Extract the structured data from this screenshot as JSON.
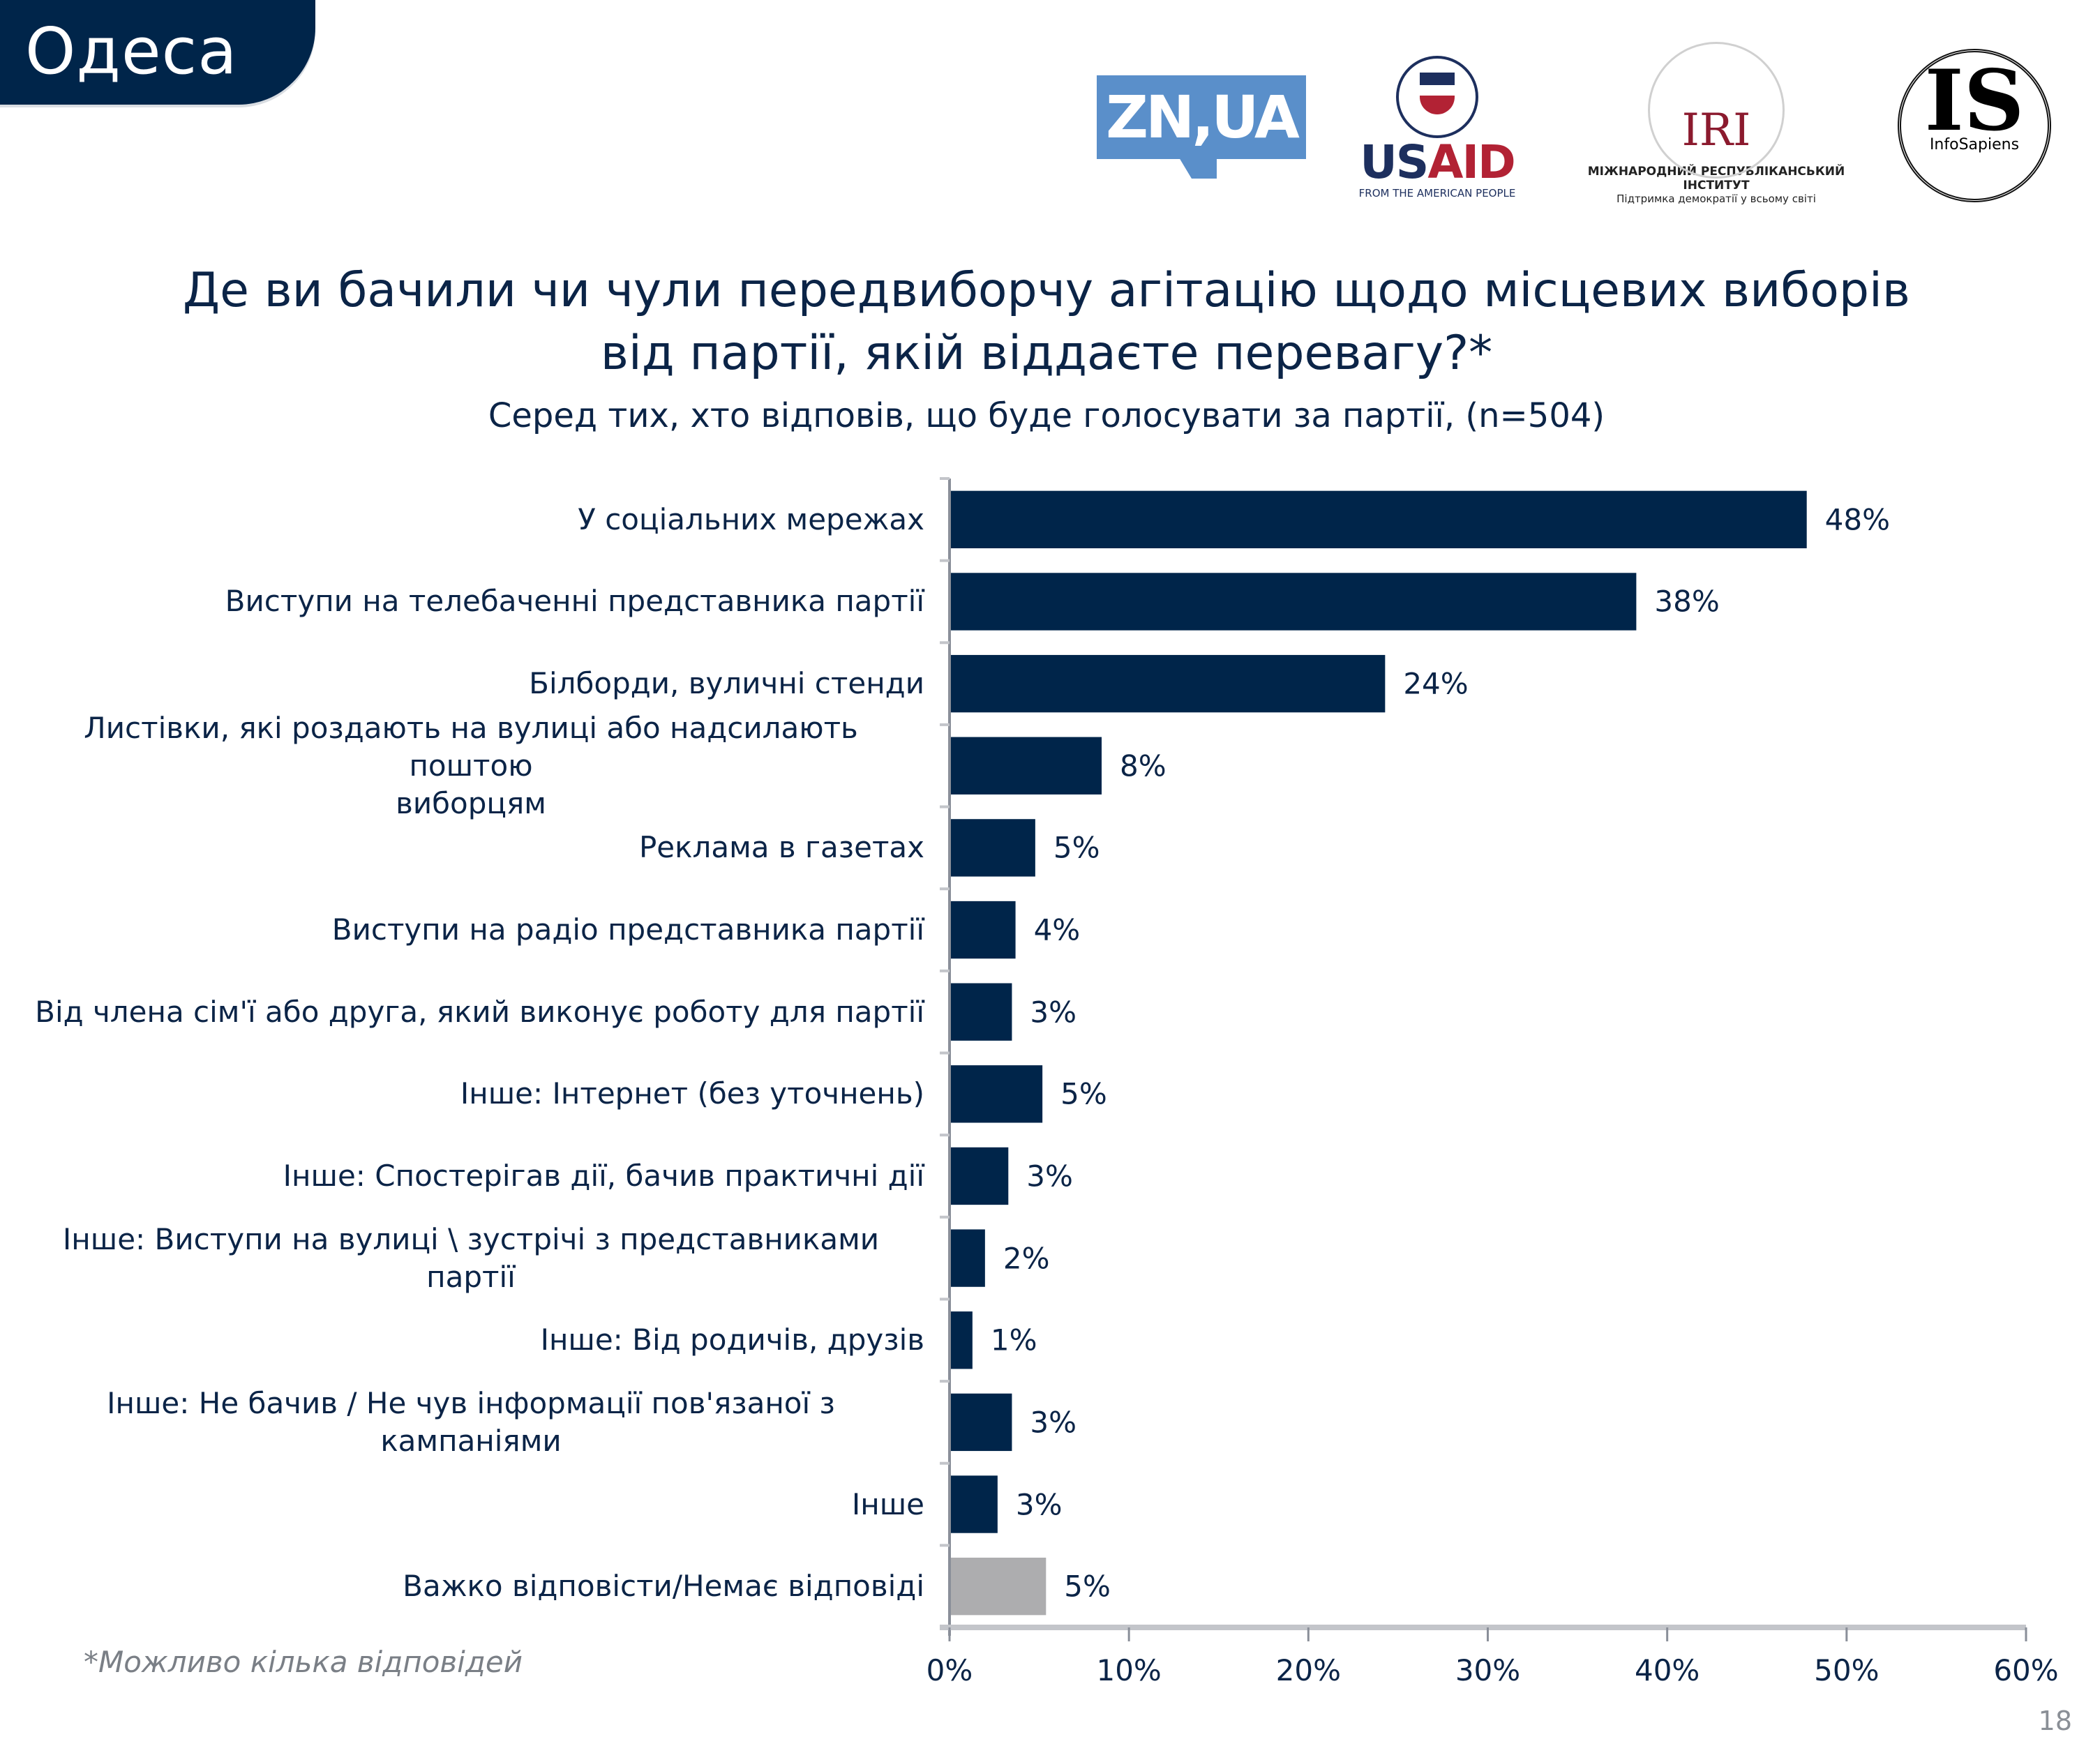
{
  "header": {
    "region": "Одеса",
    "logos": {
      "zn": "ZN,UA",
      "usaid": {
        "us": "US",
        "aid": "AID",
        "tagline": "FROM THE AMERICAN PEOPLE"
      },
      "iri": {
        "mark": "IRI",
        "name": "МІЖНАРОДНИЙ РЕСПУБЛІКАНСЬКИЙ ІНСТИТУТ",
        "tagline": "Підтримка демократії у всьому світі"
      },
      "infosapiens": {
        "mark": "IS",
        "name": "InfoSapiens"
      }
    }
  },
  "colors": {
    "bar_primary": "#00254a",
    "bar_muted": "#adadaf",
    "axis": "#8a8f99",
    "text": "#0b2447"
  },
  "footnote": "*Можливо кілька відповідей",
  "page_number": "18",
  "chart_data": {
    "type": "bar",
    "orientation": "horizontal",
    "title": "Де ви бачили чи чули передвиборчу агітацію щодо місцевих виборів від партії, якій віддаєте перевагу?*",
    "title_lines": [
      "Де ви бачили чи чули передвиборчу агітацію щодо місцевих виборів",
      "від партії, якій віддаєте перевагу?*"
    ],
    "subtitle": "Серед тих, хто відповів, що буде голосувати за партії, (n=504)",
    "xlabel": "",
    "ylabel": "",
    "xlim": [
      0,
      60
    ],
    "x_ticks": [
      0,
      10,
      20,
      30,
      40,
      50,
      60
    ],
    "x_tick_labels": [
      "0%",
      "10%",
      "20%",
      "30%",
      "40%",
      "50%",
      "60%"
    ],
    "grid": false,
    "legend": "none",
    "categories": [
      "У соціальних мережах",
      "Виступи на телебаченні представника партії",
      "Білборди, вуличні стенди",
      "Листівки, які роздають на вулиці або надсилають поштою виборцям",
      "Реклама в газетах",
      "Виступи на радіо представника партії",
      "Від члена сім'ї або друга, який виконує роботу для партії",
      "Інше: Інтернет (без уточнень)",
      "Інше: Спостерігав дії, бачив практичні дії",
      "Інше: Виступи на вулиці \\ зустрічі з представниками партії",
      "Інше: Від родичів, друзів",
      "Інше: Не бачив / Не чув інформації пов'язаної з кампаніями",
      "Інше",
      "Важко відповісти/Немає відповіді"
    ],
    "category_lines": [
      [
        "У соціальних мережах"
      ],
      [
        "Виступи на телебаченні представника партії"
      ],
      [
        "Білборди, вуличні стенди"
      ],
      [
        "Листівки, які роздають на вулиці або надсилають поштою",
        "виборцям"
      ],
      [
        "Реклама в газетах"
      ],
      [
        "Виступи на радіо представника партії"
      ],
      [
        "Від члена сім'ї або друга, який виконує роботу для партії"
      ],
      [
        "Інше: Інтернет (без уточнень)"
      ],
      [
        "Інше: Спостерігав дії, бачив практичні дії"
      ],
      [
        "Інше: Виступи на вулиці \\ зустрічі з представниками",
        "партії"
      ],
      [
        "Інше: Від родичів, друзів"
      ],
      [
        "Інше: Не бачив / Не чув інформації пов'язаної з",
        "кампаніями"
      ],
      [
        "Інше"
      ],
      [
        "Важко відповісти/Немає відповіді"
      ]
    ],
    "values": [
      47.7,
      38.2,
      24.2,
      8.4,
      4.7,
      3.6,
      3.4,
      5.1,
      3.2,
      1.9,
      1.2,
      3.4,
      2.6,
      5.3
    ],
    "data_labels": [
      "48%",
      "38%",
      "24%",
      "8%",
      "5%",
      "4%",
      "3%",
      "5%",
      "3%",
      "2%",
      "1%",
      "3%",
      "3%",
      "5%"
    ],
    "bar_colors": [
      "primary",
      "primary",
      "primary",
      "primary",
      "primary",
      "primary",
      "primary",
      "primary",
      "primary",
      "primary",
      "primary",
      "primary",
      "primary",
      "muted"
    ],
    "unit": "%"
  }
}
